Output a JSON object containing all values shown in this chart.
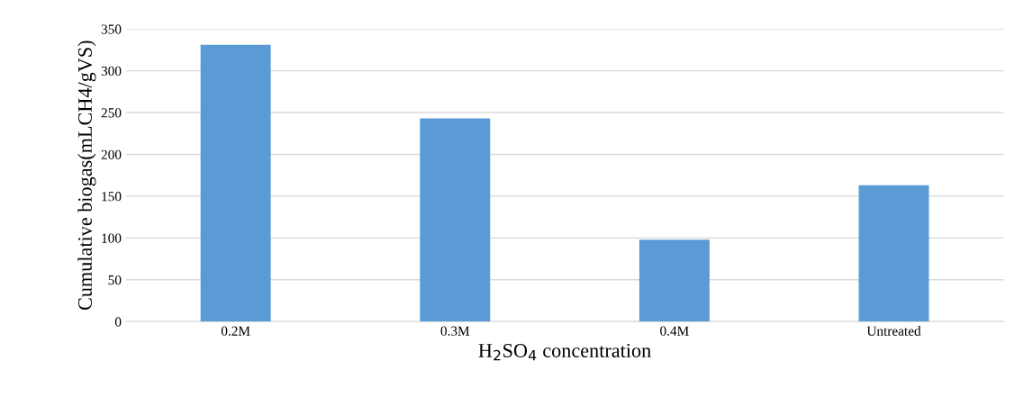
{
  "chart_data": {
    "type": "bar",
    "xlabel": "H$_{2}$SO$_{4}$ concentration",
    "ylabel": "Cumulative biogas(mLCH4/gVS)",
    "categories": [
      "0.2M",
      "0.3M",
      "0.4M",
      "Untreated"
    ],
    "values": [
      331,
      243,
      98,
      163
    ],
    "color": "#5b9bd5",
    "ylim": [
      0,
      350
    ],
    "yticks": [
      0,
      50,
      100,
      150,
      200,
      250,
      300,
      350
    ],
    "grid": "y"
  }
}
